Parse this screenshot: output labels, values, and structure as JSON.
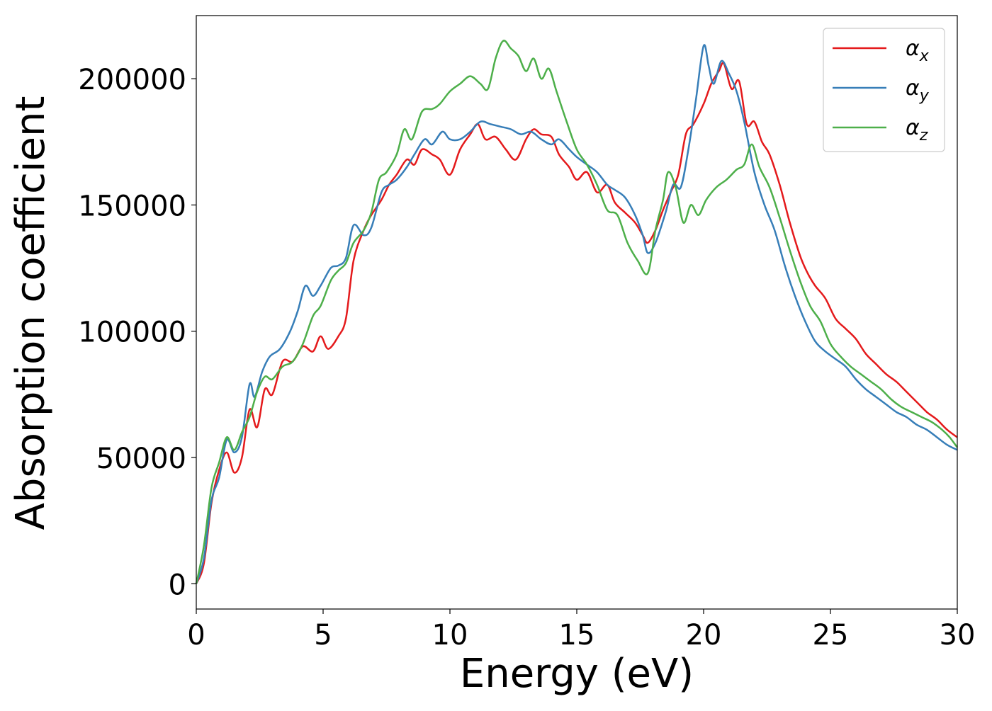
{
  "chart_data": {
    "type": "line",
    "title": "",
    "xlabel": "Energy (eV)",
    "ylabel": "Absorption coefficient",
    "xlim": [
      0,
      30
    ],
    "ylim": [
      -10000,
      225000
    ],
    "x_ticks": [
      0,
      5,
      10,
      15,
      20,
      25,
      30
    ],
    "x_tick_labels": [
      "0",
      "5",
      "10",
      "15",
      "20",
      "25",
      "30"
    ],
    "y_ticks": [
      0,
      50000,
      100000,
      150000,
      200000
    ],
    "y_tick_labels": [
      "0",
      "50000",
      "100000",
      "150000",
      "200000"
    ],
    "grid": false,
    "legend_position": "top-right",
    "series": [
      {
        "name": "αx",
        "symbol": "α",
        "subscript": "x",
        "color": "#e41a1c",
        "points": [
          [
            0,
            0
          ],
          [
            0.3,
            8000
          ],
          [
            0.6,
            32000
          ],
          [
            0.9,
            45000
          ],
          [
            1.2,
            52000
          ],
          [
            1.5,
            44000
          ],
          [
            1.8,
            50000
          ],
          [
            2.1,
            69000
          ],
          [
            2.4,
            62000
          ],
          [
            2.7,
            77000
          ],
          [
            3.0,
            75000
          ],
          [
            3.4,
            88000
          ],
          [
            3.8,
            88000
          ],
          [
            4.2,
            94000
          ],
          [
            4.6,
            92000
          ],
          [
            4.9,
            98000
          ],
          [
            5.2,
            93000
          ],
          [
            5.6,
            98000
          ],
          [
            5.9,
            105000
          ],
          [
            6.2,
            128000
          ],
          [
            6.6,
            140000
          ],
          [
            6.9,
            146000
          ],
          [
            7.3,
            152000
          ],
          [
            7.6,
            158000
          ],
          [
            7.9,
            162000
          ],
          [
            8.3,
            168000
          ],
          [
            8.6,
            166000
          ],
          [
            8.9,
            172000
          ],
          [
            9.3,
            170000
          ],
          [
            9.6,
            168000
          ],
          [
            10.0,
            162000
          ],
          [
            10.4,
            172000
          ],
          [
            10.8,
            178000
          ],
          [
            11.1,
            182000
          ],
          [
            11.4,
            176000
          ],
          [
            11.8,
            177000
          ],
          [
            12.2,
            172000
          ],
          [
            12.6,
            168000
          ],
          [
            13.0,
            176000
          ],
          [
            13.3,
            180000
          ],
          [
            13.6,
            178000
          ],
          [
            14.0,
            177000
          ],
          [
            14.3,
            170000
          ],
          [
            14.7,
            165000
          ],
          [
            15.0,
            160000
          ],
          [
            15.4,
            163000
          ],
          [
            15.8,
            155000
          ],
          [
            16.2,
            158000
          ],
          [
            16.5,
            151000
          ],
          [
            16.9,
            147000
          ],
          [
            17.3,
            143000
          ],
          [
            17.6,
            138000
          ],
          [
            17.8,
            135000
          ],
          [
            18.1,
            140000
          ],
          [
            18.4,
            148000
          ],
          [
            18.7,
            155000
          ],
          [
            19.0,
            162000
          ],
          [
            19.3,
            178000
          ],
          [
            19.6,
            182000
          ],
          [
            20.0,
            190000
          ],
          [
            20.3,
            198000
          ],
          [
            20.6,
            203000
          ],
          [
            20.8,
            206000
          ],
          [
            21.1,
            196000
          ],
          [
            21.4,
            199000
          ],
          [
            21.7,
            182000
          ],
          [
            22.0,
            183000
          ],
          [
            22.3,
            175000
          ],
          [
            22.6,
            170000
          ],
          [
            23.0,
            158000
          ],
          [
            23.4,
            143000
          ],
          [
            23.8,
            130000
          ],
          [
            24.1,
            123000
          ],
          [
            24.4,
            118000
          ],
          [
            24.8,
            113000
          ],
          [
            25.2,
            105000
          ],
          [
            25.6,
            101000
          ],
          [
            26.0,
            97000
          ],
          [
            26.4,
            91000
          ],
          [
            26.8,
            87000
          ],
          [
            27.2,
            83000
          ],
          [
            27.6,
            80000
          ],
          [
            28.0,
            76000
          ],
          [
            28.4,
            72000
          ],
          [
            28.8,
            68000
          ],
          [
            29.2,
            65000
          ],
          [
            29.6,
            61000
          ],
          [
            30.0,
            58000
          ]
        ]
      },
      {
        "name": "αy",
        "symbol": "α",
        "subscript": "y",
        "color": "#377eb8",
        "points": [
          [
            0,
            0
          ],
          [
            0.3,
            10000
          ],
          [
            0.6,
            33000
          ],
          [
            0.9,
            42000
          ],
          [
            1.2,
            57000
          ],
          [
            1.5,
            52000
          ],
          [
            1.8,
            58000
          ],
          [
            2.1,
            79000
          ],
          [
            2.3,
            74000
          ],
          [
            2.6,
            84000
          ],
          [
            2.9,
            90000
          ],
          [
            3.3,
            93000
          ],
          [
            3.7,
            100000
          ],
          [
            4.0,
            108000
          ],
          [
            4.3,
            118000
          ],
          [
            4.6,
            114000
          ],
          [
            4.9,
            118000
          ],
          [
            5.3,
            125000
          ],
          [
            5.6,
            126000
          ],
          [
            5.9,
            129000
          ],
          [
            6.2,
            142000
          ],
          [
            6.6,
            138000
          ],
          [
            6.9,
            141000
          ],
          [
            7.3,
            155000
          ],
          [
            7.6,
            158000
          ],
          [
            7.9,
            160000
          ],
          [
            8.3,
            165000
          ],
          [
            8.6,
            170000
          ],
          [
            9.0,
            176000
          ],
          [
            9.3,
            174000
          ],
          [
            9.7,
            179000
          ],
          [
            10.0,
            176000
          ],
          [
            10.4,
            176000
          ],
          [
            10.8,
            179000
          ],
          [
            11.2,
            183000
          ],
          [
            11.6,
            182000
          ],
          [
            12.0,
            181000
          ],
          [
            12.4,
            180000
          ],
          [
            12.8,
            178000
          ],
          [
            13.2,
            179000
          ],
          [
            13.6,
            176000
          ],
          [
            14.0,
            174000
          ],
          [
            14.3,
            176000
          ],
          [
            14.7,
            172000
          ],
          [
            15.0,
            169000
          ],
          [
            15.4,
            166000
          ],
          [
            15.8,
            163000
          ],
          [
            16.2,
            158000
          ],
          [
            16.5,
            156000
          ],
          [
            16.9,
            153000
          ],
          [
            17.3,
            146000
          ],
          [
            17.6,
            138000
          ],
          [
            17.8,
            131000
          ],
          [
            18.1,
            135000
          ],
          [
            18.5,
            147000
          ],
          [
            18.8,
            158000
          ],
          [
            19.1,
            157000
          ],
          [
            19.4,
            172000
          ],
          [
            19.7,
            192000
          ],
          [
            20.0,
            213000
          ],
          [
            20.2,
            205000
          ],
          [
            20.4,
            198000
          ],
          [
            20.7,
            207000
          ],
          [
            21.0,
            202000
          ],
          [
            21.3,
            195000
          ],
          [
            21.6,
            183000
          ],
          [
            22.0,
            163000
          ],
          [
            22.4,
            150000
          ],
          [
            22.8,
            140000
          ],
          [
            23.2,
            126000
          ],
          [
            23.6,
            114000
          ],
          [
            24.0,
            104000
          ],
          [
            24.4,
            96000
          ],
          [
            24.8,
            92000
          ],
          [
            25.2,
            89000
          ],
          [
            25.6,
            86000
          ],
          [
            26.0,
            81000
          ],
          [
            26.4,
            77000
          ],
          [
            26.8,
            74000
          ],
          [
            27.2,
            71000
          ],
          [
            27.6,
            68000
          ],
          [
            28.0,
            66000
          ],
          [
            28.4,
            63000
          ],
          [
            28.8,
            61000
          ],
          [
            29.2,
            58000
          ],
          [
            29.6,
            55000
          ],
          [
            30.0,
            53000
          ]
        ]
      },
      {
        "name": "αz",
        "symbol": "α",
        "subscript": "z",
        "color": "#4daf4a",
        "points": [
          [
            0,
            0
          ],
          [
            0.3,
            15000
          ],
          [
            0.6,
            38000
          ],
          [
            0.9,
            48000
          ],
          [
            1.2,
            58000
          ],
          [
            1.5,
            53000
          ],
          [
            1.8,
            60000
          ],
          [
            2.1,
            66000
          ],
          [
            2.4,
            76000
          ],
          [
            2.7,
            82000
          ],
          [
            3.0,
            81000
          ],
          [
            3.4,
            86000
          ],
          [
            3.8,
            88000
          ],
          [
            4.2,
            95000
          ],
          [
            4.6,
            106000
          ],
          [
            4.9,
            110000
          ],
          [
            5.3,
            120000
          ],
          [
            5.6,
            124000
          ],
          [
            5.9,
            127000
          ],
          [
            6.2,
            135000
          ],
          [
            6.6,
            140000
          ],
          [
            6.9,
            147000
          ],
          [
            7.2,
            160000
          ],
          [
            7.5,
            163000
          ],
          [
            7.9,
            170000
          ],
          [
            8.2,
            180000
          ],
          [
            8.5,
            176000
          ],
          [
            8.9,
            187000
          ],
          [
            9.3,
            188000
          ],
          [
            9.6,
            190000
          ],
          [
            10.0,
            195000
          ],
          [
            10.4,
            198000
          ],
          [
            10.8,
            201000
          ],
          [
            11.2,
            198000
          ],
          [
            11.5,
            196000
          ],
          [
            11.8,
            208000
          ],
          [
            12.1,
            215000
          ],
          [
            12.4,
            212000
          ],
          [
            12.7,
            209000
          ],
          [
            13.0,
            203000
          ],
          [
            13.3,
            208000
          ],
          [
            13.6,
            200000
          ],
          [
            13.9,
            204000
          ],
          [
            14.2,
            195000
          ],
          [
            14.6,
            183000
          ],
          [
            15.0,
            172000
          ],
          [
            15.4,
            166000
          ],
          [
            15.8,
            158000
          ],
          [
            16.2,
            148000
          ],
          [
            16.6,
            146000
          ],
          [
            17.0,
            135000
          ],
          [
            17.4,
            128000
          ],
          [
            17.8,
            123000
          ],
          [
            18.1,
            140000
          ],
          [
            18.4,
            152000
          ],
          [
            18.6,
            163000
          ],
          [
            18.9,
            157000
          ],
          [
            19.2,
            143000
          ],
          [
            19.5,
            150000
          ],
          [
            19.8,
            146000
          ],
          [
            20.1,
            152000
          ],
          [
            20.5,
            157000
          ],
          [
            20.9,
            160000
          ],
          [
            21.3,
            164000
          ],
          [
            21.6,
            166000
          ],
          [
            21.9,
            174000
          ],
          [
            22.2,
            165000
          ],
          [
            22.6,
            157000
          ],
          [
            23.0,
            145000
          ],
          [
            23.4,
            132000
          ],
          [
            23.8,
            120000
          ],
          [
            24.2,
            110000
          ],
          [
            24.6,
            104000
          ],
          [
            25.0,
            95000
          ],
          [
            25.4,
            90000
          ],
          [
            25.8,
            86000
          ],
          [
            26.2,
            83000
          ],
          [
            26.6,
            80000
          ],
          [
            27.0,
            77000
          ],
          [
            27.4,
            73000
          ],
          [
            27.8,
            70000
          ],
          [
            28.2,
            68000
          ],
          [
            28.6,
            66000
          ],
          [
            29.0,
            64000
          ],
          [
            29.4,
            61000
          ],
          [
            29.7,
            58000
          ],
          [
            30.0,
            54000
          ]
        ]
      }
    ]
  }
}
